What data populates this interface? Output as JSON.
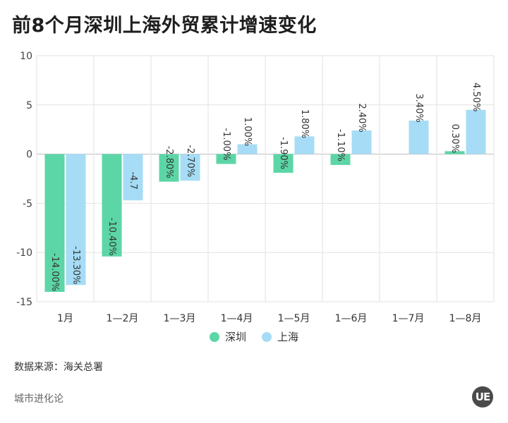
{
  "title": "前8个月深圳上海外贸累计增速变化",
  "source": "数据来源：海关总署",
  "brand": "城市进化论",
  "logo_text": "UE",
  "chart_data": {
    "type": "bar",
    "categories": [
      "1月",
      "1—2月",
      "1—3月",
      "1—4月",
      "1—5月",
      "1—6月",
      "1—7月",
      "1—8月"
    ],
    "series": [
      {
        "name": "深圳",
        "color": "#5cd6a6",
        "values": [
          -14.0,
          -10.4,
          -2.8,
          -1.0,
          -1.9,
          -1.1,
          null,
          0.3
        ],
        "labels": [
          "-14.00%",
          "-10.40%",
          "-2.80%",
          "-1.00%",
          "-1.90%",
          "-1.10%",
          "",
          "0.30%"
        ]
      },
      {
        "name": "上海",
        "color": "#a6dcf5",
        "values": [
          -13.3,
          -4.7,
          -2.7,
          1.0,
          1.8,
          2.4,
          3.4,
          4.5
        ],
        "labels": [
          "-13.30%",
          "-4.7",
          "-2.70%",
          "1.00%",
          "1.80%",
          "2.40%",
          "3.40%",
          "4.50%"
        ]
      }
    ],
    "ylim": [
      -15,
      10
    ],
    "yticks": [
      10,
      5,
      0,
      -5,
      -10,
      -15
    ],
    "grid": true,
    "legend": "bottom-center"
  }
}
